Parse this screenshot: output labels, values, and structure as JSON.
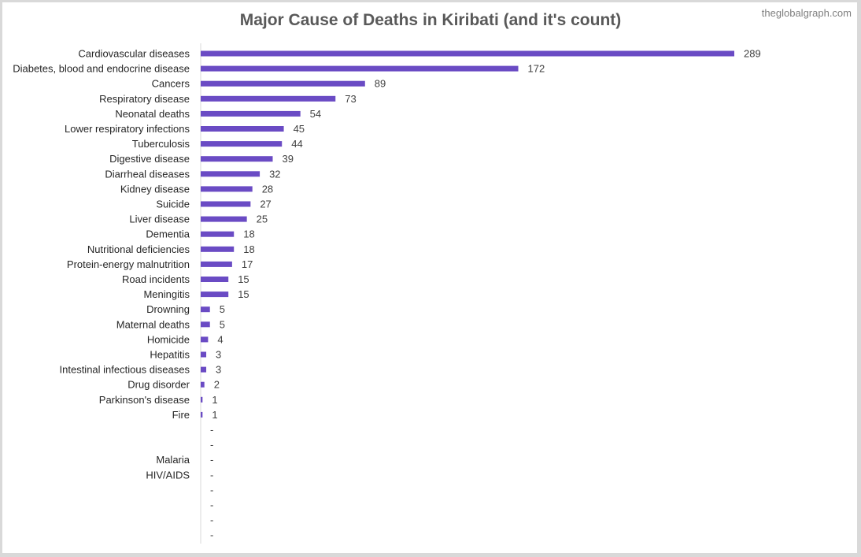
{
  "watermark": "theglobalgraph.com",
  "chart_data": {
    "type": "bar",
    "orientation": "horizontal",
    "title": "Major Cause of Deaths in Kiribati (and it's count)",
    "bar_color": "#6a4bc4",
    "xlim": [
      0,
      289
    ],
    "categories": [
      "Cardiovascular diseases",
      "Diabetes, blood and endocrine disease",
      "Cancers",
      "Respiratory disease",
      "Neonatal deaths",
      "Lower respiratory infections",
      "Tuberculosis",
      "Digestive disease",
      "Diarrheal diseases",
      "Kidney disease",
      "Suicide",
      "Liver disease",
      "Dementia",
      "Nutritional deficiencies",
      "Protein-energy malnutrition",
      "Road incidents",
      "Meningitis",
      "Drowning",
      "Maternal deaths",
      "Homicide",
      "Hepatitis",
      "Intestinal infectious diseases",
      "Drug disorder",
      "Parkinson's disease",
      "Fire",
      "",
      "",
      "Malaria",
      "HIV/AIDS",
      "",
      "",
      "",
      ""
    ],
    "values": [
      289,
      172,
      89,
      73,
      54,
      45,
      44,
      39,
      32,
      28,
      27,
      25,
      18,
      18,
      17,
      15,
      15,
      5,
      5,
      4,
      3,
      3,
      2,
      1,
      1,
      null,
      null,
      null,
      null,
      null,
      null,
      null,
      null
    ],
    "value_labels": [
      "289",
      "172",
      "89",
      "73",
      "54",
      "45",
      "44",
      "39",
      "32",
      "28",
      "27",
      "25",
      "18",
      "18",
      "17",
      "15",
      "15",
      "5",
      "5",
      "4",
      "3",
      "3",
      "2",
      "1",
      "1",
      "-",
      "-",
      "-",
      "-",
      "-",
      "-",
      "-",
      "-"
    ]
  }
}
